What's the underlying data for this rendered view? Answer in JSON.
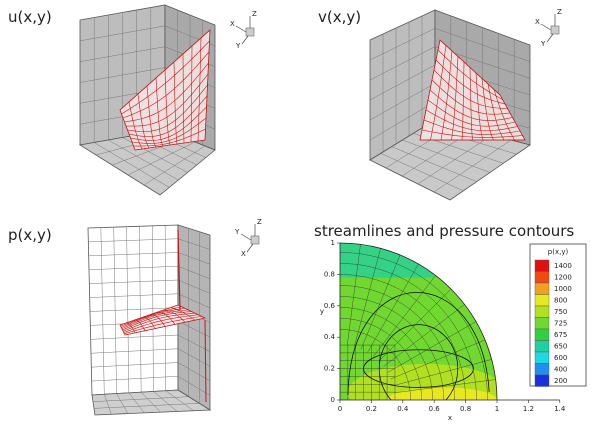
{
  "panels": [
    {
      "title": "u(x,y)",
      "triad": [
        "Z",
        "X",
        "Y"
      ]
    },
    {
      "title": "v(x,y)",
      "triad": [
        "Z",
        "X",
        "Y"
      ]
    },
    {
      "title": "p(x,y)",
      "triad": [
        "Z",
        "Y",
        "X"
      ]
    }
  ],
  "contour": {
    "title": "streamlines and pressure contours",
    "x_label": "x",
    "y_label": "y",
    "xticks": [
      "0",
      "0.2",
      "0.4",
      "0.6",
      "0.8",
      "1",
      "1.2",
      "1.4"
    ],
    "yticks": [
      "0",
      "0.2",
      "0.4",
      "0.6",
      "0.8",
      "1"
    ],
    "legend": {
      "title": "p(x,y)",
      "levels": [
        {
          "label": "1400",
          "color": "#e01010"
        },
        {
          "label": "1200",
          "color": "#f04a10"
        },
        {
          "label": "1000",
          "color": "#f0a020"
        },
        {
          "label": "800",
          "color": "#e8e820"
        },
        {
          "label": "750",
          "color": "#b0e020"
        },
        {
          "label": "725",
          "color": "#70d830"
        },
        {
          "label": "675",
          "color": "#30d040"
        },
        {
          "label": "650",
          "color": "#20d0a0"
        },
        {
          "label": "600",
          "color": "#20d8e0"
        },
        {
          "label": "400",
          "color": "#2090f0"
        },
        {
          "label": "200",
          "color": "#1830e0"
        }
      ]
    }
  }
}
